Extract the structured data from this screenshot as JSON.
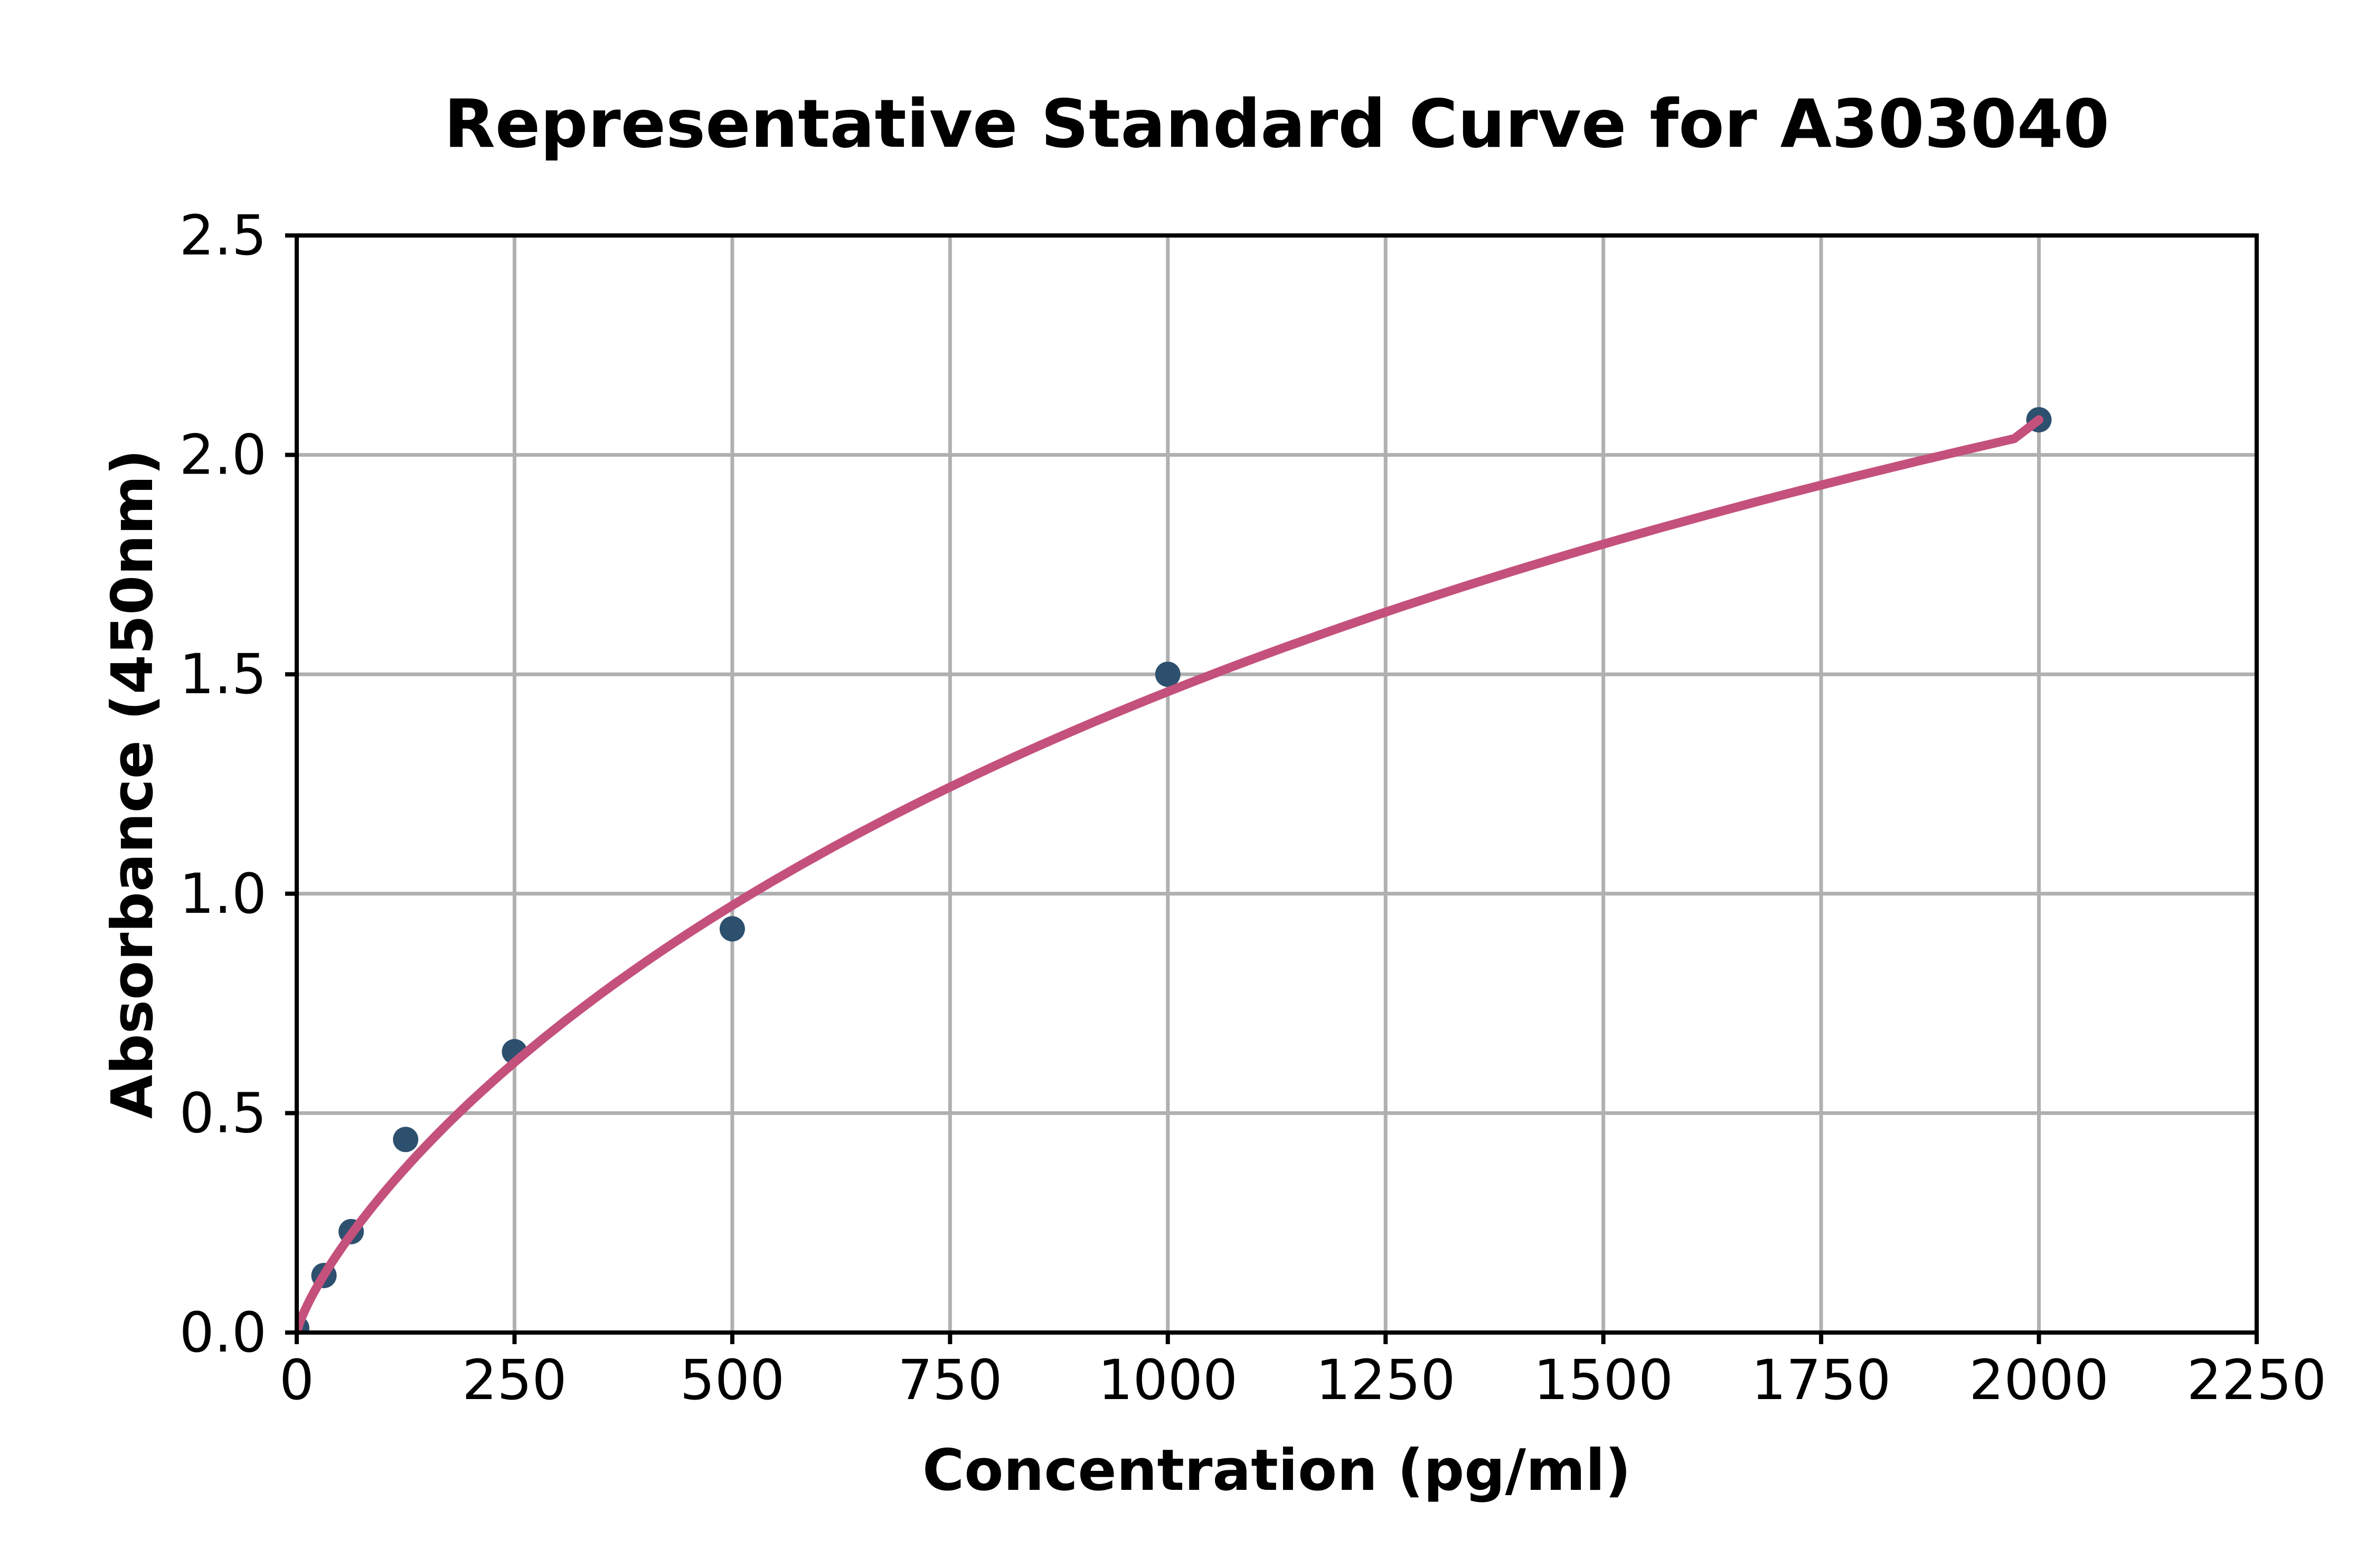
{
  "figure": {
    "background": "#FFFFFF"
  },
  "chart_data": {
    "type": "scatter",
    "title": "Representative Standard Curve for A303040",
    "xlabel": "Concentration (pg/ml)",
    "ylabel": "Absorbance (450nm)",
    "xlim": [
      0,
      2250
    ],
    "ylim": [
      0,
      2.5
    ],
    "x_ticks": {
      "values": [
        0,
        250,
        500,
        750,
        1000,
        1250,
        1500,
        1750,
        2000,
        2250
      ],
      "labels": [
        "0",
        "250",
        "500",
        "750",
        "1000",
        "1250",
        "1500",
        "1750",
        "2000",
        "2250"
      ]
    },
    "y_ticks": {
      "values": [
        0,
        0.5,
        1.0,
        1.5,
        2.0,
        2.5
      ],
      "labels": [
        "0.0",
        "0.5",
        "1.0",
        "1.5",
        "2.0",
        "2.5"
      ]
    },
    "grid": true,
    "legend": false,
    "series": [
      {
        "name": "standard-points",
        "type": "scatter",
        "color": "#2E506F",
        "marker_radius": 24,
        "points": [
          [
            0,
            0.01
          ],
          [
            31.25,
            0.13
          ],
          [
            62.5,
            0.23
          ],
          [
            125,
            0.44
          ],
          [
            250,
            0.64
          ],
          [
            500,
            0.92
          ],
          [
            1000,
            1.5
          ],
          [
            2000,
            2.08
          ]
        ]
      },
      {
        "name": "fitted-curve",
        "type": "line",
        "color": "#C4517B",
        "line_width": 17,
        "fit": {
          "model": "4PL",
          "A": 0,
          "B": 0.8,
          "C": 2500,
          "D": 4.5
        },
        "x_range": [
          0,
          2000
        ],
        "end_y": 2.08
      }
    ],
    "colors": {
      "grid": "#B0B0B0",
      "axis": "#000000",
      "text": "#000000",
      "background": "#FFFFFF"
    }
  }
}
